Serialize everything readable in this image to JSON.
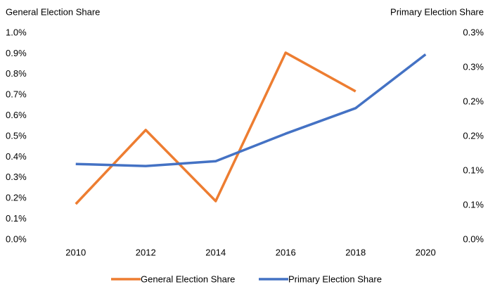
{
  "chart_data": {
    "type": "line",
    "y_label": "General Election Share",
    "y2_label": "Primary Election Share",
    "categories": [
      "2010",
      "2012",
      "2014",
      "2016",
      "2018",
      "2020"
    ],
    "series": [
      {
        "name": "General Election Share",
        "color": "#ed7d31",
        "values": [
          0.173,
          0.531,
          0.187,
          0.905,
          0.718,
          null
        ]
      },
      {
        "name": "Primary Election Share",
        "color": "#4472c4",
        "axis": "y2",
        "values": [
          0.11,
          0.107,
          0.114,
          0.154,
          0.191,
          0.269
        ]
      }
    ],
    "ylim": [
      0,
      1
    ],
    "yticks": [
      {
        "value": 0,
        "label": "0.0%"
      },
      {
        "value": 0.1,
        "label": "0.1%"
      },
      {
        "value": 0.2,
        "label": "0.2%"
      },
      {
        "value": 0.3,
        "label": "0.3%"
      },
      {
        "value": 0.4,
        "label": "0.4%"
      },
      {
        "value": 0.5,
        "label": "0.5%"
      },
      {
        "value": 0.6,
        "label": "0.6%"
      },
      {
        "value": 0.7,
        "label": "0.7%"
      },
      {
        "value": 0.8,
        "label": "0.8%"
      },
      {
        "value": 0.9,
        "label": "0.9%"
      },
      {
        "value": 1,
        "label": "1.0%"
      }
    ],
    "y2lim": [
      0,
      0.3
    ],
    "y2ticks": [
      {
        "value": 0,
        "label": "0.0%"
      },
      {
        "value": 0.05,
        "label": "0.1%"
      },
      {
        "value": 0.1,
        "label": "0.1%"
      },
      {
        "value": 0.15,
        "label": "0.2%"
      },
      {
        "value": 0.2,
        "label": "0.2%"
      },
      {
        "value": 0.25,
        "label": "0.3%"
      },
      {
        "value": 0.3,
        "label": "0.3%"
      }
    ],
    "grid": false,
    "legend": "bottom"
  }
}
